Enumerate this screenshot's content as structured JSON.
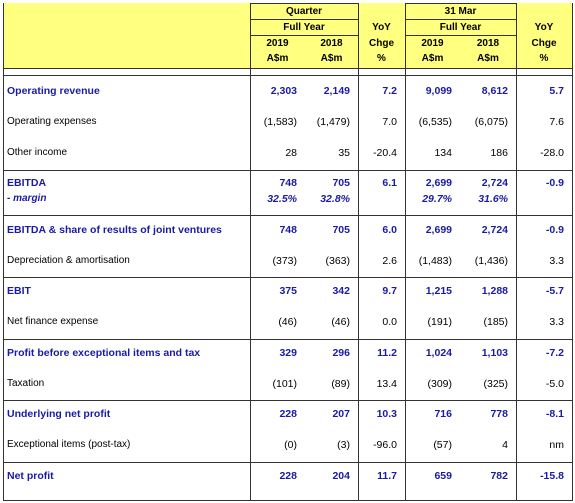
{
  "header": {
    "groups": [
      "Quarter",
      "31 Mar"
    ],
    "periods": [
      "Full Year",
      "Full Year"
    ],
    "yoy": [
      "YoY",
      "YoY"
    ],
    "years": [
      "2019",
      "2018",
      "2019",
      "2018"
    ],
    "chge": [
      "Chge",
      "Chge"
    ],
    "units": [
      "A$m",
      "A$m",
      "A$m",
      "A$m"
    ],
    "pct": [
      "%",
      "%"
    ]
  },
  "table": {
    "rows": [
      [
        "Operating revenue",
        "2,303",
        "2,149",
        "7.2",
        "9,099",
        "8,612",
        "5.7"
      ],
      [
        "Operating expenses",
        "(1,583)",
        "(1,479)",
        "7.0",
        "(6,535)",
        "(6,075)",
        "7.6"
      ],
      [
        "Other income",
        "28",
        "35",
        "-20.4",
        "134",
        "186",
        "-28.0"
      ],
      [
        "EBITDA",
        "748",
        "705",
        "6.1",
        "2,699",
        "2,724",
        "-0.9"
      ],
      [
        " - margin",
        "32.5%",
        "32.8%",
        null,
        "29.7%",
        "31.6%",
        null
      ],
      [
        "EBITDA & share of results of joint ventures",
        "748",
        "705",
        "6.0",
        "2,699",
        "2,724",
        "-0.9"
      ],
      [
        "Depreciation & amortisation",
        "(373)",
        "(363)",
        "2.6",
        "(1,483)",
        "(1,436)",
        "3.3"
      ],
      [
        "EBIT",
        "375",
        "342",
        "9.7",
        "1,215",
        "1,288",
        "-5.7"
      ],
      [
        "Net finance expense",
        "(46)",
        "(46)",
        "0.0",
        "(191)",
        "(185)",
        "3.3"
      ],
      [
        "Profit before exceptional items and tax",
        "329",
        "296",
        "11.2",
        "1,024",
        "1,103",
        "-7.2"
      ],
      [
        "Taxation",
        "(101)",
        "(89)",
        "13.4",
        "(309)",
        "(325)",
        "-5.0"
      ],
      [
        "Underlying net profit",
        "228",
        "207",
        "10.3",
        "716",
        "778",
        "-8.1"
      ],
      [
        "Exceptional items (post-tax)",
        "(0)",
        "(3)",
        "-96.0",
        "(57)",
        "4",
        "nm"
      ],
      [
        "Net profit",
        "228",
        "204",
        "11.7",
        "659",
        "782",
        "-15.8"
      ]
    ]
  }
}
